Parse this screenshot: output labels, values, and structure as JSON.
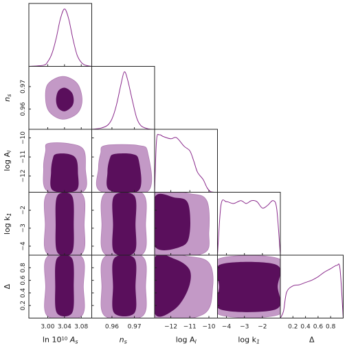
{
  "figure": {
    "colors": {
      "inner": "#5a0f5c",
      "outer": "#c399c6",
      "outer_edge": "#b07db3",
      "line": "#8a2a8c",
      "frame": "#222222"
    }
  },
  "chart_data": {
    "type": "triangle-corner",
    "parameters": [
      {
        "key": "lnAs",
        "label_parts": [
          "ln 10",
          "10",
          " A",
          "s"
        ],
        "ticks": [
          "3.00",
          "3.04",
          "3.08"
        ],
        "range": [
          2.955,
          3.105
        ]
      },
      {
        "key": "ns",
        "label_parts": [
          "n",
          "s"
        ],
        "ticks": [
          "0.96",
          "0.97"
        ],
        "range": [
          0.951,
          0.979
        ]
      },
      {
        "key": "logAl",
        "label_parts": [
          "log A",
          "l"
        ],
        "ticks": [
          "-12",
          "-11",
          "-10"
        ],
        "range": [
          -12.85,
          -9.55
        ]
      },
      {
        "key": "logk1",
        "label_parts": [
          "log k",
          "1"
        ],
        "ticks": [
          "-4",
          "-3",
          "-2"
        ],
        "range": [
          -4.5,
          -1.0
        ]
      },
      {
        "key": "Delta",
        "label_parts": [
          "Δ"
        ],
        "ticks": [
          "0.2",
          "0.4",
          "0.6",
          "0.8"
        ],
        "range": [
          0.0,
          1.0
        ]
      }
    ],
    "marginals": [
      {
        "param": "lnAs",
        "x": [
          2.955,
          2.99,
          3.0,
          3.01,
          3.02,
          3.03,
          3.04,
          3.05,
          3.06,
          3.07,
          3.08,
          3.09,
          3.105
        ],
        "y": [
          0.0,
          0.02,
          0.08,
          0.22,
          0.48,
          0.82,
          1.0,
          0.83,
          0.48,
          0.2,
          0.07,
          0.02,
          0.0
        ]
      },
      {
        "param": "ns",
        "x": [
          0.951,
          0.955,
          0.958,
          0.96,
          0.962,
          0.964,
          0.9655,
          0.967,
          0.969,
          0.971,
          0.973,
          0.976,
          0.979
        ],
        "y": [
          0.0,
          0.02,
          0.07,
          0.18,
          0.42,
          0.78,
          1.0,
          0.86,
          0.52,
          0.2,
          0.06,
          0.01,
          0.0
        ]
      },
      {
        "param": "logAl",
        "x": [
          -12.85,
          -12.75,
          -12.6,
          -12.4,
          -12.0,
          -11.7,
          -11.3,
          -11.0,
          -10.8,
          -10.6,
          -10.3,
          -10.1,
          -9.9,
          -9.55
        ],
        "y": [
          0.0,
          0.9,
          1.0,
          0.97,
          0.93,
          0.95,
          0.8,
          0.72,
          0.55,
          0.35,
          0.22,
          0.08,
          0.01,
          0.0
        ]
      },
      {
        "param": "logk1",
        "x": [
          -4.5,
          -4.3,
          -4.0,
          -3.6,
          -3.2,
          -2.9,
          -2.6,
          -2.3,
          -2.0,
          -1.7,
          -1.4,
          -1.2,
          -1.0
        ],
        "y": [
          0.0,
          0.88,
          0.93,
          0.9,
          0.95,
          0.9,
          0.95,
          0.93,
          0.82,
          0.87,
          0.95,
          0.8,
          0.0
        ]
      },
      {
        "param": "Delta",
        "x": [
          0.0,
          0.05,
          0.1,
          0.2,
          0.3,
          0.4,
          0.5,
          0.6,
          0.7,
          0.8,
          0.9,
          0.95,
          1.0
        ],
        "y": [
          0.0,
          0.12,
          0.45,
          0.56,
          0.58,
          0.62,
          0.66,
          0.72,
          0.8,
          0.86,
          0.92,
          0.85,
          0.0
        ]
      }
    ],
    "contours_2d": [
      {
        "x": "lnAs",
        "y": "ns",
        "outer": [
          [
            2.995,
            0.964
          ],
          [
            3.005,
            0.9585
          ],
          [
            3.035,
            0.9555
          ],
          [
            3.07,
            0.958
          ],
          [
            3.082,
            0.964
          ],
          [
            3.07,
            0.9715
          ],
          [
            3.035,
            0.9745
          ],
          [
            3.0,
            0.971
          ]
        ],
        "inner": [
          [
            3.02,
            0.964
          ],
          [
            3.025,
            0.9605
          ],
          [
            3.04,
            0.959
          ],
          [
            3.057,
            0.961
          ],
          [
            3.062,
            0.964
          ],
          [
            3.057,
            0.9675
          ],
          [
            3.04,
            0.9695
          ],
          [
            3.025,
            0.968
          ]
        ]
      },
      {
        "x": "lnAs",
        "y": "logAl",
        "outer": [
          [
            3.0,
            -10.3
          ],
          [
            3.05,
            -10.3
          ],
          [
            3.085,
            -10.6
          ],
          [
            3.09,
            -11.6
          ],
          [
            3.085,
            -12.8
          ],
          [
            3.0,
            -12.8
          ],
          [
            2.99,
            -11.6
          ],
          [
            2.995,
            -10.7
          ]
        ],
        "inner": [
          [
            3.02,
            -10.85
          ],
          [
            3.05,
            -10.85
          ],
          [
            3.068,
            -11.1
          ],
          [
            3.072,
            -11.8
          ],
          [
            3.068,
            -12.75
          ],
          [
            3.012,
            -12.75
          ],
          [
            3.008,
            -11.8
          ],
          [
            3.012,
            -11.1
          ]
        ]
      },
      {
        "x": "ns",
        "y": "logAl",
        "outer": [
          [
            0.957,
            -10.4
          ],
          [
            0.972,
            -10.4
          ],
          [
            0.976,
            -10.8
          ],
          [
            0.976,
            -12.8
          ],
          [
            0.955,
            -12.8
          ],
          [
            0.954,
            -11.6
          ],
          [
            0.955,
            -10.8
          ]
        ],
        "inner": [
          [
            0.961,
            -10.85
          ],
          [
            0.969,
            -10.85
          ],
          [
            0.972,
            -11.2
          ],
          [
            0.972,
            -12.75
          ],
          [
            0.959,
            -12.75
          ],
          [
            0.958,
            -11.8
          ],
          [
            0.959,
            -11.1
          ]
        ]
      },
      {
        "x": "logAl",
        "y": "logk1",
        "outer": [
          [
            -12.85,
            -1.1
          ],
          [
            -10.9,
            -1.1
          ],
          [
            -10.1,
            -1.5
          ],
          [
            -10.0,
            -3.2
          ],
          [
            -10.3,
            -4.4
          ],
          [
            -12.85,
            -4.4
          ]
        ],
        "inner": [
          [
            -12.85,
            -1.3
          ],
          [
            -11.8,
            -1.3
          ],
          [
            -11.1,
            -1.6
          ],
          [
            -11.0,
            -3.2
          ],
          [
            -11.4,
            -4.0
          ],
          [
            -12.85,
            -4.0
          ]
        ]
      },
      {
        "x": "logAl",
        "y": "Delta",
        "outer": [
          [
            -12.85,
            0.98
          ],
          [
            -11.1,
            0.98
          ],
          [
            -10.0,
            0.88
          ],
          [
            -9.8,
            0.5
          ],
          [
            -10.3,
            0.06
          ],
          [
            -12.85,
            0.03
          ]
        ],
        "inner": [
          [
            -12.85,
            0.95
          ],
          [
            -11.8,
            0.94
          ],
          [
            -11.0,
            0.76
          ],
          [
            -11.1,
            0.45
          ],
          [
            -11.8,
            0.14
          ],
          [
            -12.85,
            0.08
          ]
        ]
      },
      {
        "x": "logk1",
        "y": "Delta",
        "outer": [
          [
            -4.45,
            0.94
          ],
          [
            -1.05,
            0.94
          ],
          [
            -1.0,
            0.5
          ],
          [
            -1.05,
            0.06
          ],
          [
            -4.45,
            0.06
          ],
          [
            -4.5,
            0.5
          ]
        ],
        "inner": [
          [
            -4.35,
            0.85
          ],
          [
            -1.25,
            0.85
          ],
          [
            -1.15,
            0.5
          ],
          [
            -1.25,
            0.14
          ],
          [
            -4.35,
            0.14
          ],
          [
            -4.4,
            0.5
          ]
        ]
      },
      {
        "x": "lnAs",
        "y": "logk1",
        "outer": [
          [
            3.0,
            -1.05
          ],
          [
            3.08,
            -1.05
          ],
          [
            3.087,
            -2.8
          ],
          [
            3.08,
            -4.45
          ],
          [
            3.0,
            -4.45
          ],
          [
            2.994,
            -2.8
          ]
        ],
        "inner": [
          [
            3.023,
            -1.2
          ],
          [
            3.058,
            -1.2
          ],
          [
            3.062,
            -2.8
          ],
          [
            3.058,
            -4.35
          ],
          [
            3.023,
            -4.35
          ],
          [
            3.019,
            -2.8
          ]
        ]
      },
      {
        "x": "ns",
        "y": "logk1",
        "outer": [
          [
            0.957,
            -1.05
          ],
          [
            0.9735,
            -1.05
          ],
          [
            0.975,
            -2.8
          ],
          [
            0.9735,
            -4.45
          ],
          [
            0.957,
            -4.45
          ],
          [
            0.9555,
            -2.8
          ]
        ],
        "inner": [
          [
            0.961,
            -1.2
          ],
          [
            0.97,
            -1.2
          ],
          [
            0.9705,
            -2.8
          ],
          [
            0.97,
            -4.35
          ],
          [
            0.961,
            -4.35
          ],
          [
            0.9605,
            -2.8
          ]
        ]
      },
      {
        "x": "lnAs",
        "y": "Delta",
        "outer": [
          [
            3.0,
            0.98
          ],
          [
            3.08,
            0.98
          ],
          [
            3.085,
            0.5
          ],
          [
            3.08,
            0.03
          ],
          [
            3.0,
            0.03
          ],
          [
            2.995,
            0.5
          ]
        ],
        "inner": [
          [
            3.022,
            0.95
          ],
          [
            3.058,
            0.95
          ],
          [
            3.062,
            0.5
          ],
          [
            3.058,
            0.08
          ],
          [
            3.022,
            0.08
          ],
          [
            3.018,
            0.5
          ]
        ]
      },
      {
        "x": "ns",
        "y": "Delta",
        "outer": [
          [
            0.957,
            0.98
          ],
          [
            0.9735,
            0.98
          ],
          [
            0.975,
            0.5
          ],
          [
            0.9735,
            0.03
          ],
          [
            0.957,
            0.03
          ],
          [
            0.9555,
            0.5
          ]
        ],
        "inner": [
          [
            0.961,
            0.95
          ],
          [
            0.97,
            0.95
          ],
          [
            0.9705,
            0.5
          ],
          [
            0.97,
            0.08
          ],
          [
            0.961,
            0.08
          ],
          [
            0.9605,
            0.5
          ]
        ]
      }
    ]
  }
}
